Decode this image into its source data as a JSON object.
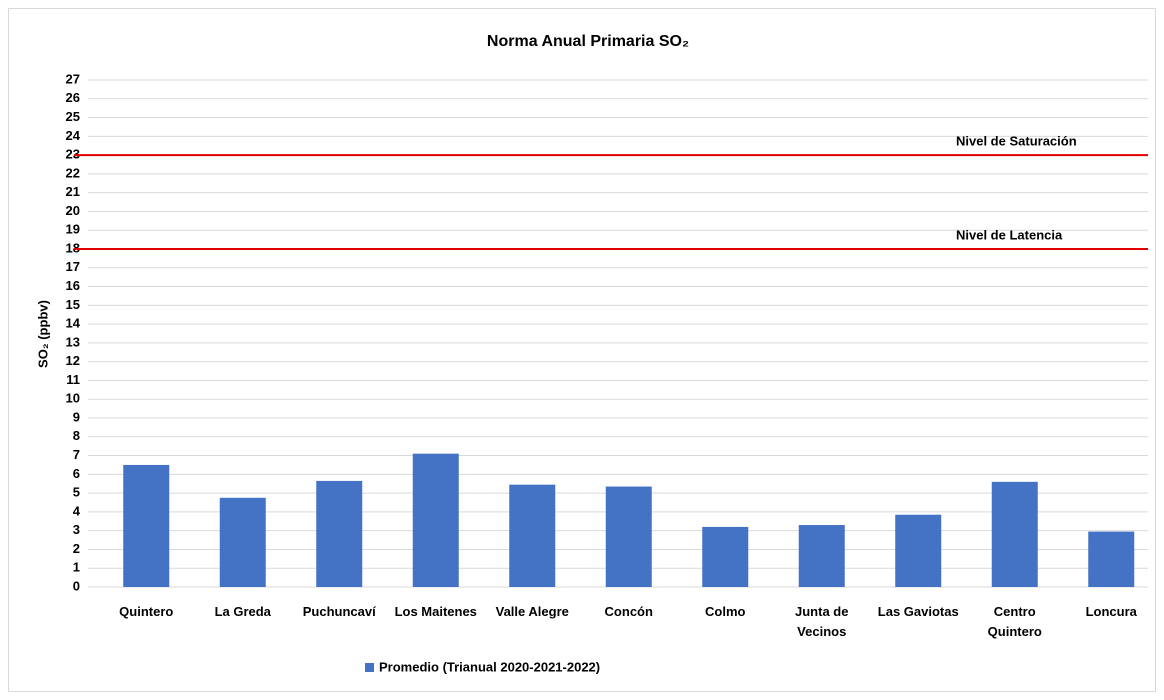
{
  "chart_data": {
    "type": "bar",
    "title": "Norma Anual Primaria SO₂",
    "y_label": "SO₂  (ppbv)",
    "categories": [
      "Quintero",
      "La Greda",
      "Puchuncaví",
      "Los Maitenes",
      "Valle Alegre",
      "Concón",
      "Colmo",
      "Junta de Vecinos",
      "Las Gaviotas",
      "Centro Quintero",
      "Loncura"
    ],
    "series": [
      {
        "name": "Promedio (Trianual 2020-2021-2022)",
        "color": "#4472c4",
        "values": [
          6.5,
          4.75,
          5.65,
          7.1,
          5.45,
          5.35,
          3.2,
          3.3,
          3.85,
          5.6,
          2.95
        ]
      }
    ],
    "ylim": [
      0,
      27
    ],
    "yticks": [
      0,
      1,
      2,
      3,
      4,
      5,
      6,
      7,
      8,
      9,
      10,
      11,
      12,
      13,
      14,
      15,
      16,
      17,
      18,
      19,
      20,
      21,
      22,
      23,
      24,
      25,
      26,
      27
    ],
    "grid": true,
    "legend": "bottom",
    "reference_lines": [
      {
        "value": 23,
        "label": "Nivel de Saturación",
        "color": "#e00000"
      },
      {
        "value": 18,
        "label": "Nivel de Latencia",
        "color": "#e00000"
      }
    ]
  }
}
